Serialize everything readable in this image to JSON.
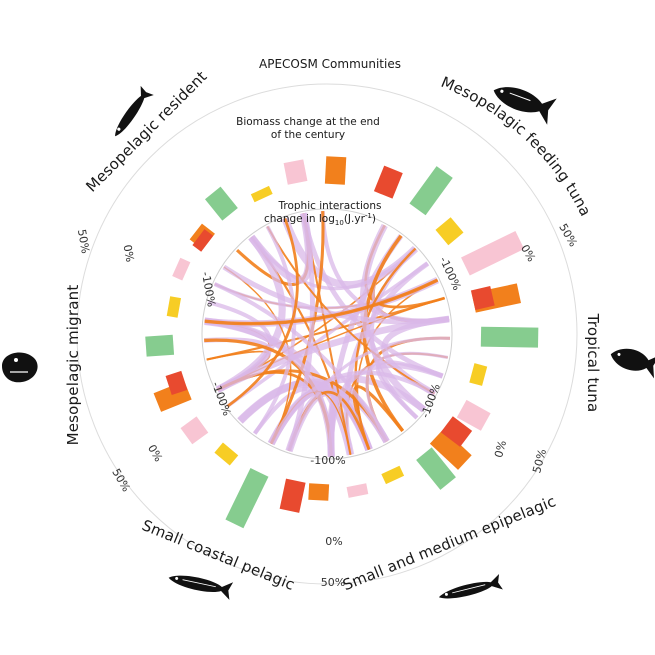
{
  "figure": {
    "title": "APECOSM Communities",
    "biomass_title_line1": "Biomass change at the end",
    "biomass_title_line2": "of the century",
    "trophic_title_line1": "Trophic interactions",
    "trophic_title_line2": "change in log",
    "trophic_title_sub": "10",
    "trophic_title_unit": "(J.yr",
    "trophic_title_sup": "-1",
    "trophic_title_close": ")"
  },
  "colors": {
    "red": "#e84a2f",
    "green": "#86cc8f",
    "yellow": "#f7cd25",
    "pink": "#f8c5d3",
    "orange": "#f2801c",
    "chord_orange": "#f2801c",
    "chord_lilac": "#d9b8e8",
    "ring_line": "#d8d8d8"
  },
  "icons": [
    "fish-icon",
    "tuna-icon",
    "lanternfish-icon",
    "anglerfish-icon",
    "sardine-icon",
    "anchovy-icon"
  ],
  "chart_data": {
    "type": "bar",
    "layout": "circular",
    "series_colors": [
      "red",
      "green",
      "yellow",
      "pink",
      "orange"
    ],
    "communities": [
      {
        "name": "Mesopelagic feeding tuna",
        "values": [
          0.25,
          0.42,
          0.18,
          0.55,
          0.42
        ]
      },
      {
        "name": "Tropical tuna",
        "values": [
          0.18,
          0.52,
          0.12,
          0.25,
          0.35
        ]
      },
      {
        "name": "Small and medium epipelagic",
        "values": [
          0.22,
          0.35,
          0.1,
          0.1,
          0.15
        ]
      },
      {
        "name": "Small coastal pelagic",
        "values": [
          0.28,
          0.52,
          0.12,
          0.18,
          0.3
        ]
      },
      {
        "name": "Mesopelagic migrant",
        "values": [
          0.15,
          0.25,
          0.1,
          0.1,
          0.15
        ]
      },
      {
        "name": "Mesopelagic resident",
        "values": [
          0.1,
          0.25,
          0.08,
          0.2,
          0.25
        ]
      }
    ],
    "biomass_axis": {
      "zero_label": "0%",
      "max_label": "50%"
    },
    "trophic_axis": {
      "label": "-100%"
    }
  }
}
